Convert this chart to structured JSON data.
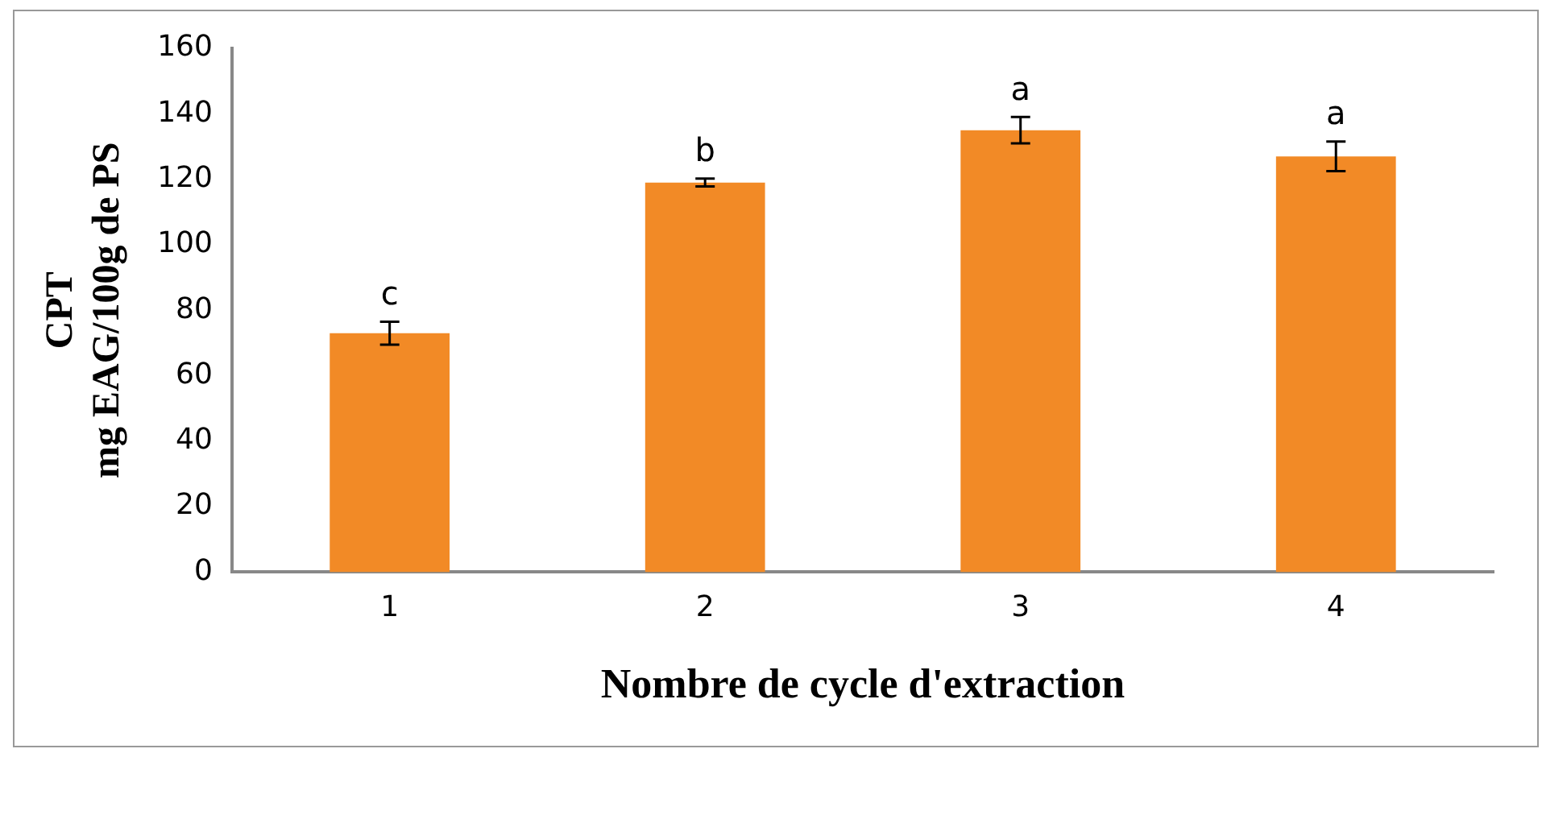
{
  "chart_data": {
    "type": "bar",
    "categories": [
      "1",
      "2",
      "3",
      "4"
    ],
    "values": [
      73,
      119,
      135,
      127
    ],
    "errors": [
      3.5,
      1.2,
      4,
      4.5
    ],
    "color": "#f28a26",
    "ylim": [
      0,
      160
    ],
    "yticks": [
      0,
      20,
      40,
      60,
      80,
      100,
      120,
      140,
      160
    ],
    "xlabel": "Nombre de cycle d'extraction",
    "ylabel": "CPT\nmg EAG/100g de PS",
    "annotations": [
      "c",
      "b",
      "a",
      "a"
    ],
    "grid": false,
    "legend": false
  }
}
